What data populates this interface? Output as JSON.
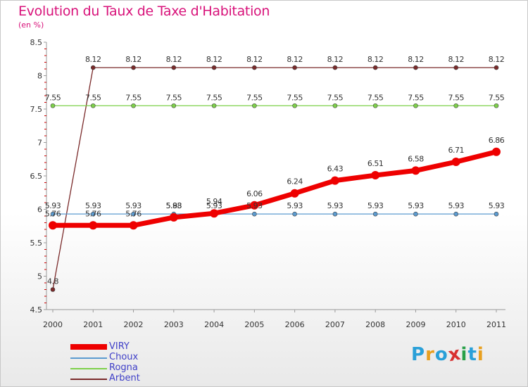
{
  "title": "Evolution du Taux de Taxe d'Habitation",
  "unit_label": "(en %)",
  "logo_text": "Proxiti",
  "logo_colors": [
    "#2aa0d8",
    "#e8a020",
    "#2aa0d8",
    "#d83030",
    "#28a048",
    "#2aa0d8",
    "#e8a020"
  ],
  "colors": {
    "title": "#d8127a",
    "legend_text": "#4040c8",
    "axis": "#999999",
    "tick_red": "#cc0000"
  },
  "chart_data": {
    "type": "line",
    "title": "Evolution du Taux de Taxe d'Habitation",
    "ylabel": "(en %)",
    "xlabel": "",
    "x": [
      "2000",
      "2001",
      "2002",
      "2003",
      "2004",
      "2005",
      "2006",
      "2007",
      "2008",
      "2009",
      "2010",
      "2011"
    ],
    "ylim": [
      4.5,
      8.5
    ],
    "yticks": [
      4.5,
      5,
      5.5,
      6,
      6.5,
      7,
      7.5,
      8,
      8.5
    ],
    "ytick_labels": [
      "4.5",
      "5",
      "5.5",
      "6",
      "6.5",
      "7",
      "7.5",
      "8",
      "8.5"
    ],
    "series": [
      {
        "name": "Arbent",
        "color": "#7a2a2a",
        "values": [
          4.8,
          8.12,
          8.12,
          8.12,
          8.12,
          8.12,
          8.12,
          8.12,
          8.12,
          8.12,
          8.12,
          8.12
        ],
        "labels": [
          "4.8",
          "8.12",
          "8.12",
          "8.12",
          "8.12",
          "8.12",
          "8.12",
          "8.12",
          "8.12",
          "8.12",
          "8.12",
          "8.12"
        ]
      },
      {
        "name": "Rogna",
        "color": "#7ed04a",
        "values": [
          7.55,
          7.55,
          7.55,
          7.55,
          7.55,
          7.55,
          7.55,
          7.55,
          7.55,
          7.55,
          7.55,
          7.55
        ],
        "labels": [
          "7.55",
          "7.55",
          "7.55",
          "7.55",
          "7.55",
          "7.55",
          "7.55",
          "7.55",
          "7.55",
          "7.55",
          "7.55",
          "7.55"
        ]
      },
      {
        "name": "Choux",
        "color": "#5b9bd0",
        "values": [
          5.93,
          5.93,
          5.93,
          5.93,
          5.93,
          5.93,
          5.93,
          5.93,
          5.93,
          5.93,
          5.93,
          5.93
        ],
        "labels": [
          "5.93",
          "5.93",
          "5.93",
          "5.93",
          "5.93",
          "5.93",
          "5.93",
          "5.93",
          "5.93",
          "5.93",
          "5.93",
          "5.93"
        ]
      },
      {
        "name": "VIRY",
        "color": "#ee0000",
        "values": [
          5.76,
          5.76,
          5.76,
          5.88,
          5.94,
          6.06,
          6.24,
          6.43,
          6.51,
          6.58,
          6.71,
          6.86
        ],
        "labels": [
          "5.76",
          "5.76",
          "5.76",
          "5.88",
          "5.94",
          "6.06",
          "6.24",
          "6.43",
          "6.51",
          "6.58",
          "6.71",
          "6.86"
        ]
      }
    ],
    "legend": [
      "VIRY",
      "Choux",
      "Rogna",
      "Arbent"
    ],
    "legend_position": "bottom-left",
    "grid": false
  }
}
